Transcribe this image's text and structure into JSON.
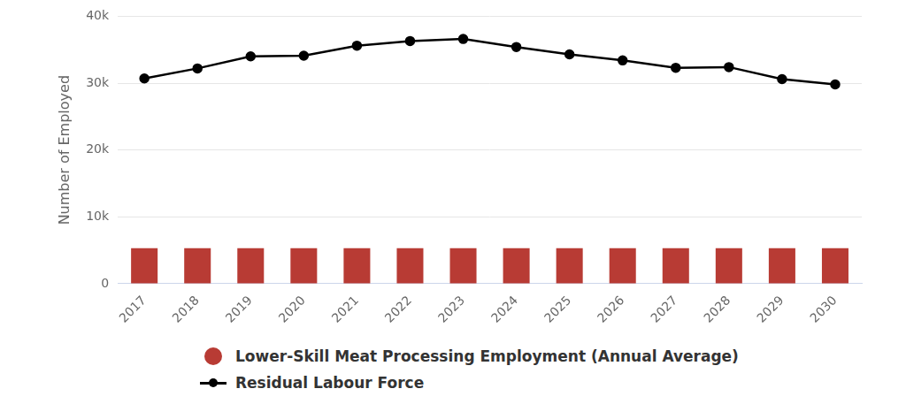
{
  "chart_data": {
    "type": "bar",
    "y_label": "Number of Employed",
    "categories": [
      "2017",
      "2018",
      "2019",
      "2020",
      "2021",
      "2022",
      "2023",
      "2024",
      "2025",
      "2026",
      "2027",
      "2028",
      "2029",
      "2030"
    ],
    "series": [
      {
        "name": "Lower-Skill Meat Processing Employment (Annual Average)",
        "type": "bar",
        "color": "#b83b34",
        "marker": "circle",
        "values": [
          5300,
          5300,
          5300,
          5300,
          5300,
          5300,
          5300,
          5300,
          5300,
          5300,
          5300,
          5300,
          5300,
          5300
        ]
      },
      {
        "name": "Residual Labour Force",
        "type": "line",
        "color": "#000000",
        "marker": "circle",
        "line_style": "solid",
        "values": [
          30700,
          32200,
          34000,
          34100,
          35600,
          36300,
          36600,
          35400,
          34300,
          33400,
          32300,
          32400,
          30600,
          29800
        ]
      }
    ],
    "ylim": [
      0,
      40000
    ],
    "yticks": [
      {
        "value": 0,
        "label": "0"
      },
      {
        "value": 10000,
        "label": "10k"
      },
      {
        "value": 20000,
        "label": "20k"
      },
      {
        "value": 30000,
        "label": "30k"
      },
      {
        "value": 40000,
        "label": "40k"
      }
    ],
    "grid": true,
    "legend": "bottom"
  }
}
